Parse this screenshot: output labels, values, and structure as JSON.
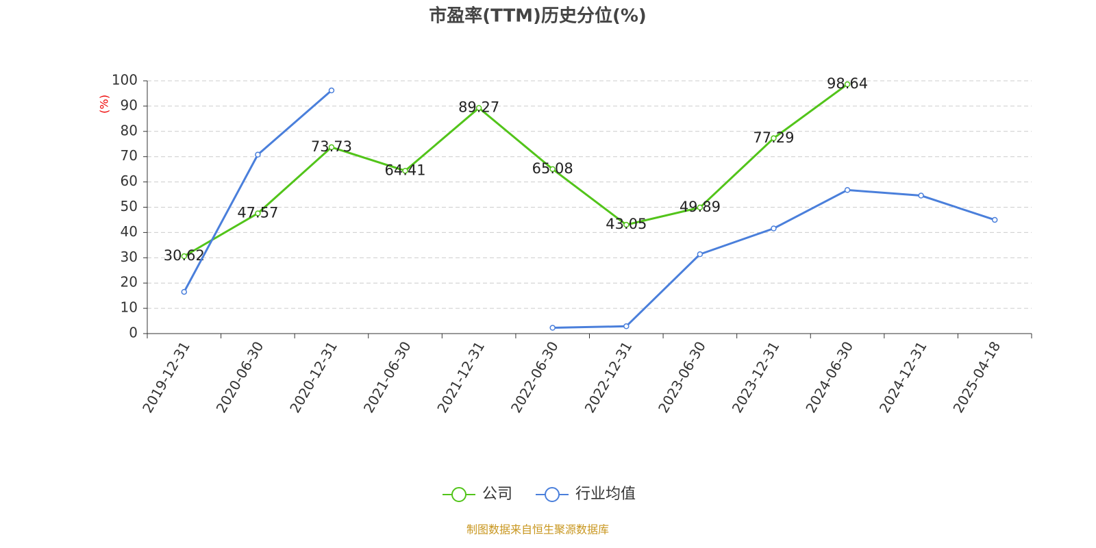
{
  "chart_data": {
    "type": "line",
    "title": "市盈率(TTM)历史分位(%)",
    "y_label": "(%)",
    "source": "制图数据来自恒生聚源数据库",
    "categories": [
      "2019-12-31",
      "2020-06-30",
      "2020-12-31",
      "2021-06-30",
      "2021-12-31",
      "2022-06-30",
      "2022-12-31",
      "2023-06-30",
      "2023-12-31",
      "2024-06-30",
      "2024-12-31",
      "2025-04-18"
    ],
    "series": [
      {
        "name": "公司",
        "color": "#52c41a",
        "show_labels": true,
        "values": [
          30.62,
          47.57,
          73.73,
          64.41,
          89.27,
          65.08,
          43.05,
          49.89,
          77.29,
          98.64,
          null,
          null
        ]
      },
      {
        "name": "行业均值",
        "color": "#4a7fdb",
        "show_labels": false,
        "values": [
          16.5,
          70.8,
          96.2,
          null,
          null,
          2.3,
          2.9,
          31.4,
          41.6,
          56.8,
          54.6,
          45.0
        ]
      }
    ],
    "ylim": [
      0,
      100
    ],
    "yticks": [
      0,
      10,
      20,
      30,
      40,
      50,
      60,
      70,
      80,
      90,
      100
    ],
    "grid": true,
    "legend": "bottom"
  }
}
